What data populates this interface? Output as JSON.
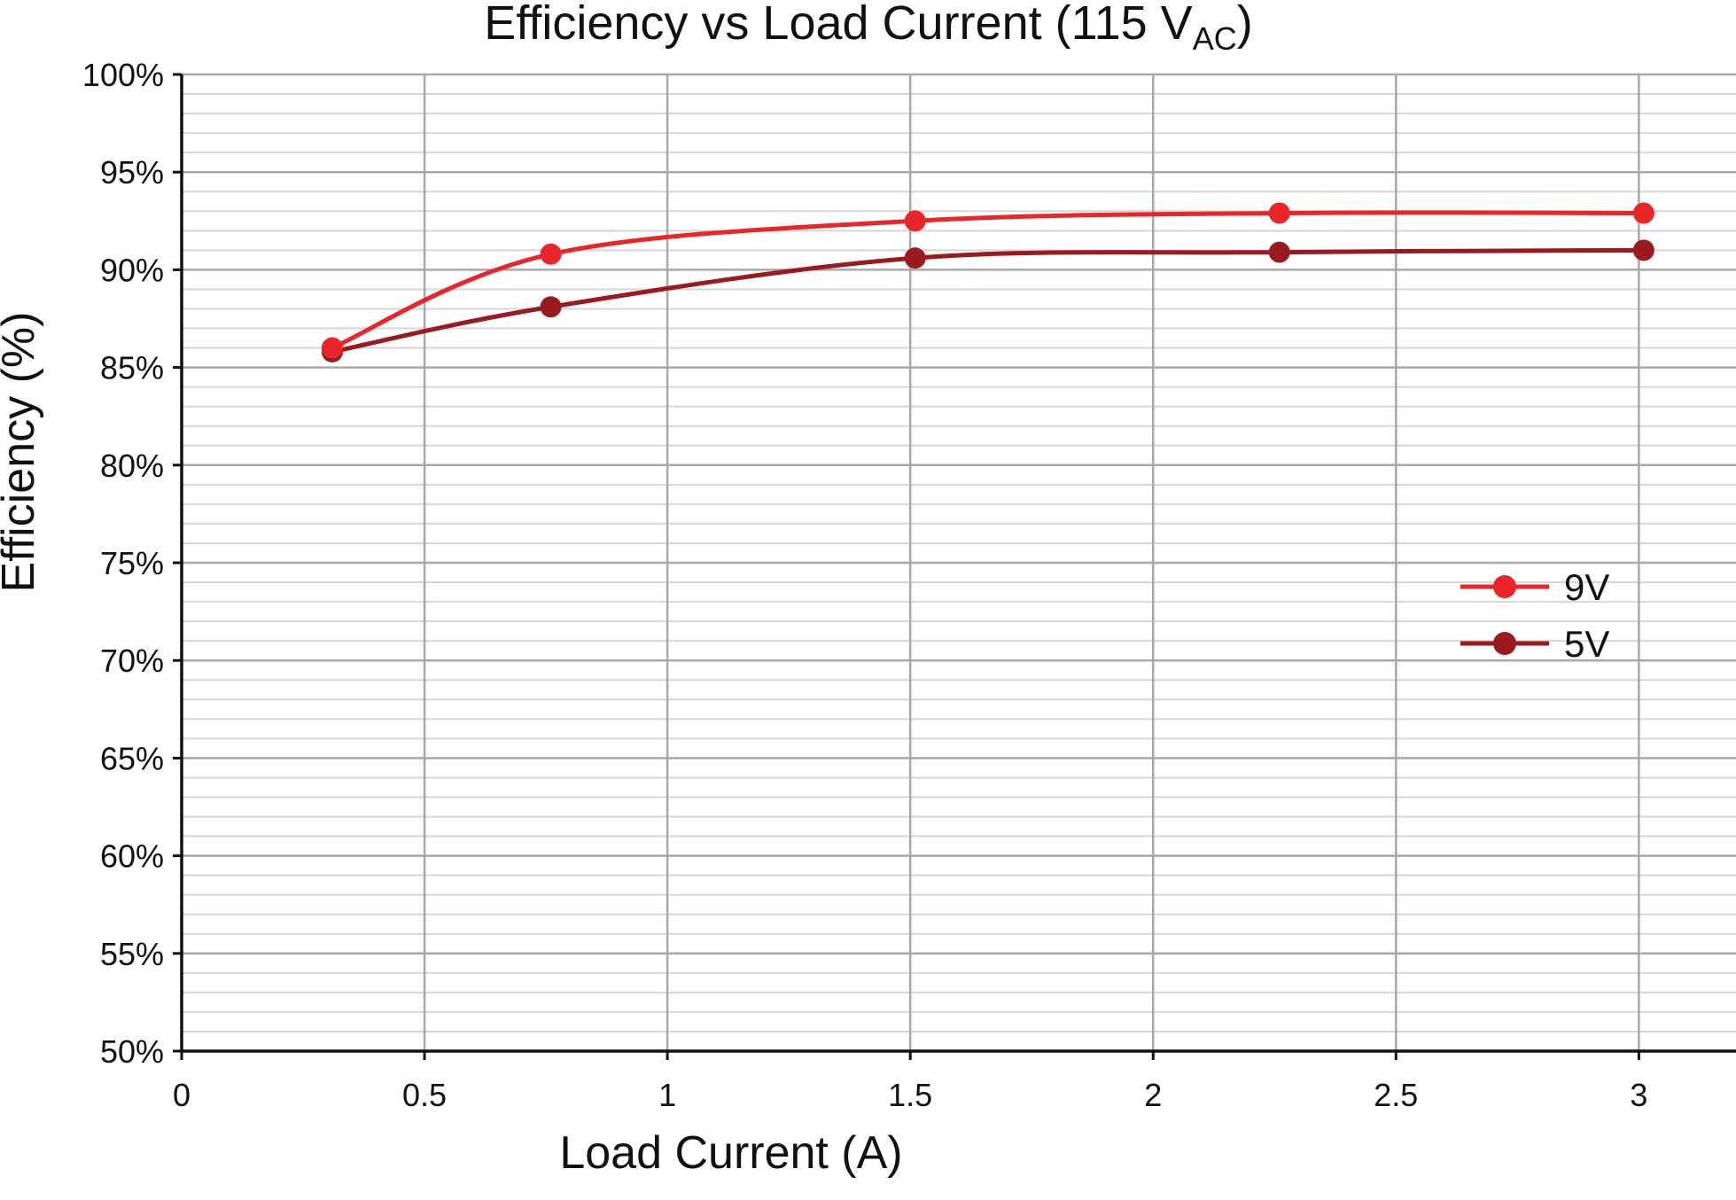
{
  "chart_data": {
    "type": "line",
    "title": {
      "main": "Efficiency vs Load Current (115 V",
      "sub": "AC",
      "close": ")"
    },
    "xlabel": "Load Current (A)",
    "ylabel": "Efficiency (%)",
    "xlim": [
      0,
      3.2
    ],
    "ylim": [
      50,
      100
    ],
    "x_ticks": [
      0,
      0.5,
      1,
      1.5,
      2,
      2.5,
      3
    ],
    "x_tick_labels": [
      "0",
      "0.5",
      "1",
      "1.5",
      "2",
      "2.5",
      "3"
    ],
    "y_ticks": [
      50,
      55,
      60,
      65,
      70,
      75,
      80,
      85,
      90,
      95,
      100
    ],
    "y_tick_labels": [
      "50%",
      "55%",
      "60%",
      "65%",
      "70%",
      "75%",
      "80%",
      "85%",
      "90%",
      "95%",
      "100%"
    ],
    "y_minor_step": 1,
    "grid": true,
    "legend_position": "right",
    "series": [
      {
        "name": "9V",
        "color": "#e8262a",
        "x": [
          0.31,
          0.76,
          1.51,
          2.26,
          3.01
        ],
        "y": [
          86.0,
          90.8,
          92.5,
          92.9,
          92.9
        ]
      },
      {
        "name": "5V",
        "color": "#9b1a1f",
        "x": [
          0.31,
          0.76,
          1.51,
          2.26,
          3.01
        ],
        "y": [
          85.8,
          88.1,
          90.6,
          90.9,
          91.0
        ]
      }
    ]
  }
}
